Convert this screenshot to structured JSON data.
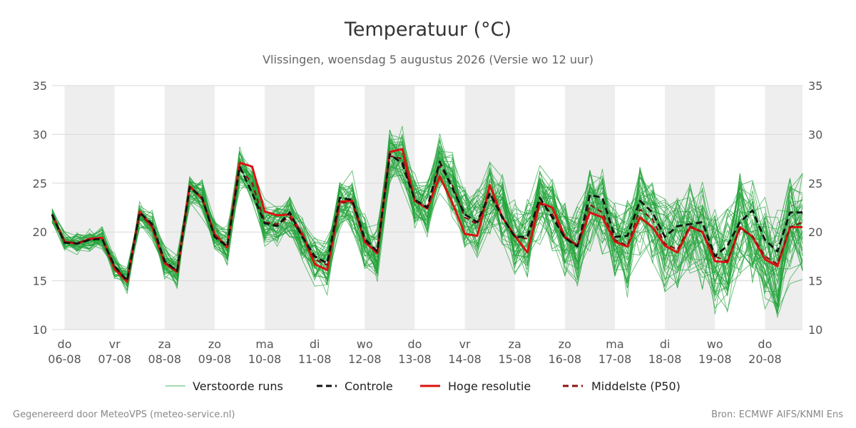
{
  "chart_data": {
    "type": "line",
    "title": "Temperatuur (°C)",
    "subtitle": "Vlissingen, woensdag  5 augustus 2026 (Versie wo 12 uur)",
    "ylim": [
      10,
      35
    ],
    "yticks": [
      10,
      15,
      20,
      25,
      30,
      35
    ],
    "day_labels": [
      {
        "day": "do",
        "date": "06-08"
      },
      {
        "day": "vr",
        "date": "07-08"
      },
      {
        "day": "za",
        "date": "08-08"
      },
      {
        "day": "zo",
        "date": "09-08"
      },
      {
        "day": "ma",
        "date": "10-08"
      },
      {
        "day": "di",
        "date": "11-08"
      },
      {
        "day": "wo",
        "date": "12-08"
      },
      {
        "day": "do",
        "date": "13-08"
      },
      {
        "day": "vr",
        "date": "14-08"
      },
      {
        "day": "za",
        "date": "15-08"
      },
      {
        "day": "zo",
        "date": "16-08"
      },
      {
        "day": "ma",
        "date": "17-08"
      },
      {
        "day": "di",
        "date": "18-08"
      },
      {
        "day": "wo",
        "date": "19-08"
      },
      {
        "day": "do",
        "date": "20-08"
      }
    ],
    "shaded_days": [
      0,
      2,
      4,
      6,
      8,
      10,
      12,
      14
    ],
    "x_days_from": -0.25,
    "x_days_to": 14.75,
    "series_x": [
      -0.25,
      0,
      0.25,
      0.5,
      0.75,
      1,
      1.25,
      1.5,
      1.75,
      2,
      2.25,
      2.5,
      2.75,
      3,
      3.25,
      3.5,
      3.75,
      4,
      4.25,
      4.5,
      4.75,
      5,
      5.25,
      5.5,
      5.75,
      6,
      6.25,
      6.5,
      6.75,
      7,
      7.25,
      7.5,
      7.75,
      8,
      8.25,
      8.5,
      8.75,
      9,
      9.25,
      9.5,
      9.75,
      10,
      10.25,
      10.5,
      10.75,
      11,
      11.25,
      11.5,
      11.75,
      12,
      12.25,
      12.5,
      12.75,
      13,
      13.25,
      13.5,
      13.75,
      14,
      14.25,
      14.5,
      14.75
    ],
    "series": [
      {
        "name": "Controle",
        "color": "#111111",
        "style": "dashed",
        "values": [
          21.8,
          18.9,
          18.8,
          19.2,
          19.3,
          16.5,
          15.0,
          22.0,
          20.8,
          17.0,
          16.0,
          24.6,
          23.5,
          19.5,
          18.5,
          26.7,
          24.0,
          20.9,
          20.6,
          22.0,
          19.5,
          17.5,
          16.8,
          23.5,
          23.3,
          19.3,
          18.0,
          28.0,
          27.0,
          23.3,
          22.5,
          27.2,
          24.5,
          21.8,
          21.0,
          24.0,
          21.5,
          19.5,
          19.5,
          23.5,
          21.5,
          19.4,
          18.5,
          23.8,
          23.5,
          19.5,
          19.6,
          23.2,
          22.0,
          19.5,
          20.6,
          20.8,
          21.0,
          17.5,
          18.6,
          21.0,
          22.2,
          19.2,
          18.0,
          22.0,
          22.0
        ]
      },
      {
        "name": "Hoge resolutie",
        "color": "#dd1111",
        "style": "solid",
        "values": [
          21.8,
          19.0,
          18.8,
          19.3,
          19.4,
          16.2,
          14.9,
          22.1,
          20.5,
          16.8,
          15.9,
          24.7,
          23.4,
          19.8,
          18.4,
          27.1,
          26.7,
          22.1,
          21.7,
          21.8,
          19.8,
          16.7,
          16.1,
          23.1,
          23.2,
          19.0,
          17.8,
          28.2,
          28.5,
          23.2,
          22.4,
          25.7,
          23.0,
          19.8,
          19.6,
          24.8,
          21.5,
          19.6,
          17.9,
          23.0,
          22.5,
          19.5,
          18.6,
          22.0,
          21.5,
          19.0,
          18.5,
          21.5,
          20.5,
          18.6,
          17.9,
          20.5,
          20.0,
          17.0,
          16.9,
          20.5,
          19.5,
          17.2,
          16.5,
          20.5,
          20.5
        ]
      },
      {
        "name": "Middelste (P50)",
        "color": "#8b1111",
        "style": "dashed",
        "values": [
          21.7,
          19.0,
          18.9,
          19.2,
          19.3,
          16.4,
          15.1,
          21.8,
          20.6,
          16.9,
          16.0,
          24.5,
          23.5,
          19.6,
          18.6,
          26.5,
          25.0,
          21.0,
          20.8,
          21.5,
          19.6,
          17.2,
          16.6,
          23.0,
          23.0,
          19.1,
          18.0,
          27.8,
          27.5,
          23.3,
          22.6,
          26.8,
          24.8,
          21.5,
          20.8,
          23.8,
          21.6,
          19.5,
          19.3,
          23.0,
          21.8,
          19.4,
          18.6,
          22.8,
          22.0,
          19.2,
          18.6,
          22.3,
          21.3,
          18.8,
          18.2,
          20.6,
          20.0,
          17.5,
          17.0,
          20.3,
          19.6,
          17.5,
          16.7,
          20.5,
          21.0
        ]
      }
    ],
    "ensemble_count": 50,
    "ensemble_color": "#22a33a",
    "legend": [
      {
        "label": "Verstoorde runs",
        "color": "#22a33a",
        "style": "thin"
      },
      {
        "label": "Controle",
        "color": "#111111",
        "style": "dashed"
      },
      {
        "label": "Hoge resolutie",
        "color": "#dd1111",
        "style": "solid"
      },
      {
        "label": "Middelste (P50)",
        "color": "#8b1111",
        "style": "dashed"
      }
    ],
    "legend_position": "bottom",
    "grid": true
  },
  "footer": {
    "left": "Gegenereerd door MeteoVPS (meteo-service.nl)",
    "right": "Bron: ECMWF AIFS/KNMI Ens"
  }
}
